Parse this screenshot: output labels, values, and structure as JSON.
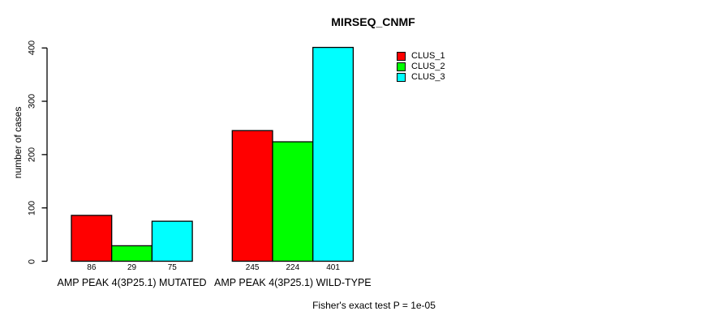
{
  "chart_data": {
    "type": "bar",
    "title": "MIRSEQ_CNMF",
    "ylabel": "number of cases",
    "xlabel": "",
    "ylim": [
      0,
      400
    ],
    "yticks": [
      0,
      100,
      200,
      300,
      400
    ],
    "categories": [
      "AMP PEAK 4(3P25.1) MUTATED",
      "AMP PEAK 4(3P25.1) WILD-TYPE"
    ],
    "series": [
      {
        "name": "CLUS_1",
        "color": "#ff0000",
        "values": [
          86,
          245
        ]
      },
      {
        "name": "CLUS_2",
        "color": "#00ff00",
        "values": [
          29,
          224
        ]
      },
      {
        "name": "CLUS_3",
        "color": "#00ffff",
        "values": [
          75,
          401
        ]
      }
    ],
    "bar_value_labels": [
      [
        86,
        29,
        75
      ],
      [
        245,
        224,
        401
      ]
    ],
    "legend": {
      "position": "top-right",
      "entries": [
        {
          "label": "CLUS_1",
          "color": "#ff0000"
        },
        {
          "label": "CLUS_2",
          "color": "#00ff00"
        },
        {
          "label": "CLUS_3",
          "color": "#00ffff"
        }
      ]
    },
    "grid": false,
    "axis_color": "#000000",
    "bar_border_color": "#000000",
    "annotation": "Fisher's exact test P = 1e-05"
  }
}
